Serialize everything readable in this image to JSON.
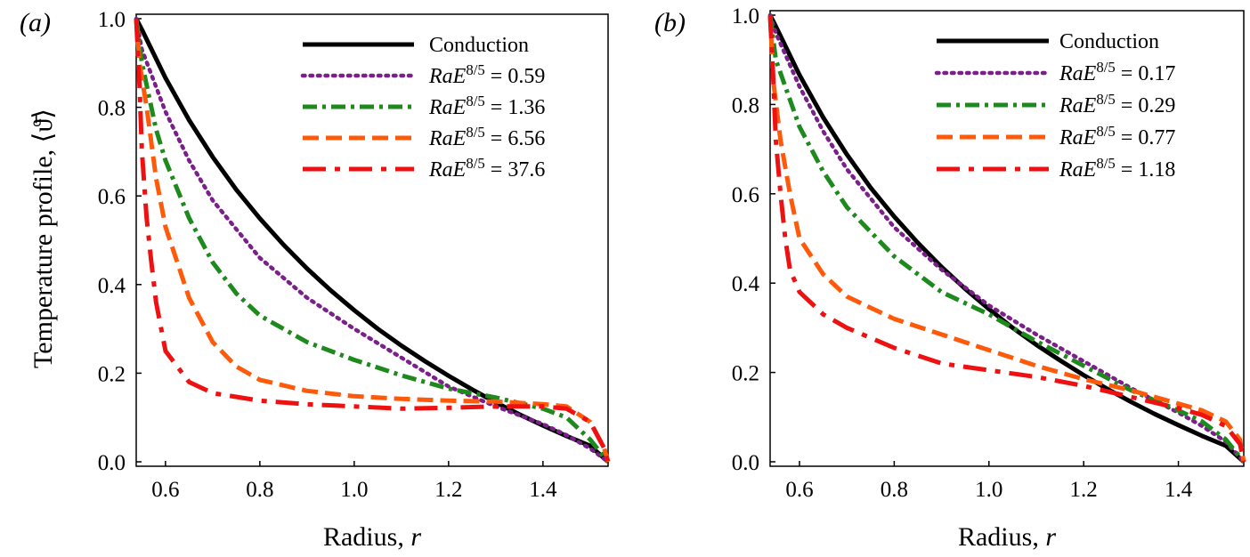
{
  "figure": {
    "ylabel": "Temperature profile, ⟨ϑ̄⟩",
    "xlabel_text": "Radius, ",
    "xlabel_var": "r"
  },
  "chart_data": [
    {
      "type": "line",
      "panel_label": "(a)",
      "xlabel": "Radius, r",
      "ylabel": "Temperature profile, ⟨ϑ̄⟩",
      "xlim": [
        0.538,
        1.538
      ],
      "ylim": [
        -0.01,
        1.01
      ],
      "xticks": [
        "0.6",
        "0.8",
        "1.0",
        "1.2",
        "1.4"
      ],
      "yticks": [
        "0.0",
        "0.2",
        "0.4",
        "0.6",
        "0.8",
        "1.0"
      ],
      "legend_position": "top-right",
      "series": [
        {
          "name": "Conduction",
          "name_html": "Conduction",
          "style": "solid",
          "color": "#000000",
          "x": [
            0.538,
            0.55,
            0.6,
            0.65,
            0.7,
            0.75,
            0.8,
            0.85,
            0.9,
            0.95,
            1.0,
            1.05,
            1.1,
            1.15,
            1.2,
            1.25,
            1.3,
            1.35,
            1.4,
            1.45,
            1.5,
            1.538
          ],
          "y": [
            1.0,
            0.975,
            0.866,
            0.771,
            0.688,
            0.614,
            0.549,
            0.49,
            0.436,
            0.387,
            0.342,
            0.3,
            0.262,
            0.227,
            0.194,
            0.163,
            0.134,
            0.107,
            0.082,
            0.058,
            0.036,
            0.0
          ]
        },
        {
          "name": "RaE^{8/5} = 0.59",
          "name_html": "<tspan font-style='italic'>RaE</tspan><tspan baseline-shift='super' font-size='70%'>8/5</tspan><tspan> = 0.59</tspan>",
          "style": "dotted",
          "color": "#7b1f8a",
          "x": [
            0.538,
            0.55,
            0.6,
            0.65,
            0.7,
            0.8,
            0.9,
            1.0,
            1.1,
            1.2,
            1.3,
            1.4,
            1.45,
            1.5,
            1.538
          ],
          "y": [
            1.0,
            0.93,
            0.79,
            0.68,
            0.59,
            0.46,
            0.37,
            0.3,
            0.235,
            0.17,
            0.125,
            0.085,
            0.06,
            0.03,
            0.0
          ]
        },
        {
          "name": "RaE^{8/5} = 1.36",
          "name_html": "<tspan font-style='italic'>RaE</tspan><tspan baseline-shift='super' font-size='70%'>8/5</tspan><tspan> = 1.36</tspan>",
          "style": "dashdot",
          "color": "#1e8a1e",
          "x": [
            0.538,
            0.55,
            0.58,
            0.6,
            0.65,
            0.7,
            0.75,
            0.8,
            0.9,
            1.0,
            1.1,
            1.2,
            1.3,
            1.4,
            1.45,
            1.5,
            1.538
          ],
          "y": [
            1.0,
            0.9,
            0.75,
            0.68,
            0.55,
            0.45,
            0.38,
            0.33,
            0.27,
            0.23,
            0.195,
            0.165,
            0.145,
            0.12,
            0.1,
            0.05,
            0.0
          ]
        },
        {
          "name": "RaE^{8/5} = 6.56",
          "name_html": "<tspan font-style='italic'>RaE</tspan><tspan baseline-shift='super' font-size='70%'>8/5</tspan><tspan> = 6.56</tspan>",
          "style": "dashed",
          "color": "#ff5a0a",
          "x": [
            0.538,
            0.545,
            0.56,
            0.58,
            0.6,
            0.65,
            0.7,
            0.75,
            0.8,
            0.9,
            1.0,
            1.1,
            1.2,
            1.3,
            1.4,
            1.45,
            1.5,
            1.53,
            1.538
          ],
          "y": [
            1.0,
            0.9,
            0.8,
            0.64,
            0.53,
            0.37,
            0.27,
            0.215,
            0.185,
            0.16,
            0.148,
            0.142,
            0.138,
            0.136,
            0.13,
            0.125,
            0.09,
            0.03,
            0.0
          ]
        },
        {
          "name": "RaE^{8/5} = 37.6",
          "name_html": "<tspan font-style='italic'>RaE</tspan><tspan baseline-shift='super' font-size='70%'>8/5</tspan><tspan> = 37.6</tspan>",
          "style": "longdashdot",
          "color": "#ee1111",
          "x": [
            0.538,
            0.545,
            0.55,
            0.56,
            0.57,
            0.58,
            0.6,
            0.65,
            0.7,
            0.8,
            0.9,
            1.0,
            1.1,
            1.2,
            1.3,
            1.4,
            1.45,
            1.5,
            1.53,
            1.538
          ],
          "y": [
            1.0,
            0.85,
            0.7,
            0.55,
            0.45,
            0.36,
            0.25,
            0.18,
            0.155,
            0.138,
            0.13,
            0.125,
            0.12,
            0.122,
            0.125,
            0.125,
            0.12,
            0.09,
            0.03,
            0.0
          ]
        }
      ]
    },
    {
      "type": "line",
      "panel_label": "(b)",
      "xlabel": "Radius, r",
      "ylabel": "",
      "xlim": [
        0.538,
        1.538
      ],
      "ylim": [
        -0.01,
        1.01
      ],
      "xticks": [
        "0.6",
        "0.8",
        "1.0",
        "1.2",
        "1.4"
      ],
      "yticks": [
        "0.0",
        "0.2",
        "0.4",
        "0.6",
        "0.8",
        "1.0"
      ],
      "legend_position": "top-right",
      "series": [
        {
          "name": "Conduction",
          "name_html": "Conduction",
          "style": "solid",
          "color": "#000000",
          "x": [
            0.538,
            0.55,
            0.6,
            0.65,
            0.7,
            0.75,
            0.8,
            0.85,
            0.9,
            0.95,
            1.0,
            1.05,
            1.1,
            1.15,
            1.2,
            1.25,
            1.3,
            1.35,
            1.4,
            1.45,
            1.5,
            1.538
          ],
          "y": [
            1.0,
            0.975,
            0.866,
            0.771,
            0.688,
            0.614,
            0.549,
            0.49,
            0.436,
            0.387,
            0.342,
            0.3,
            0.262,
            0.227,
            0.194,
            0.163,
            0.134,
            0.107,
            0.082,
            0.058,
            0.036,
            0.0
          ]
        },
        {
          "name": "RaE^{8/5} = 0.17",
          "name_html": "<tspan font-style='italic'>RaE</tspan><tspan baseline-shift='super' font-size='70%'>8/5</tspan><tspan> = 0.17</tspan>",
          "style": "dotted",
          "color": "#7b1f8a",
          "x": [
            0.538,
            0.55,
            0.6,
            0.65,
            0.7,
            0.8,
            0.9,
            1.0,
            1.1,
            1.2,
            1.3,
            1.4,
            1.45,
            1.5,
            1.538
          ],
          "y": [
            1.0,
            0.96,
            0.84,
            0.74,
            0.655,
            0.525,
            0.43,
            0.35,
            0.285,
            0.225,
            0.165,
            0.11,
            0.08,
            0.045,
            0.0
          ]
        },
        {
          "name": "RaE^{8/5} = 0.29",
          "name_html": "<tspan font-style='italic'>RaE</tspan><tspan baseline-shift='super' font-size='70%'>8/5</tspan><tspan> = 0.29</tspan>",
          "style": "dashdot",
          "color": "#1e8a1e",
          "x": [
            0.538,
            0.55,
            0.6,
            0.65,
            0.7,
            0.8,
            0.9,
            1.0,
            1.1,
            1.2,
            1.3,
            1.4,
            1.45,
            1.5,
            1.538
          ],
          "y": [
            1.0,
            0.9,
            0.75,
            0.65,
            0.57,
            0.46,
            0.38,
            0.33,
            0.27,
            0.215,
            0.16,
            0.115,
            0.09,
            0.05,
            0.0
          ]
        },
        {
          "name": "RaE^{8/5} = 0.77",
          "name_html": "<tspan font-style='italic'>RaE</tspan><tspan baseline-shift='super' font-size='70%'>8/5</tspan><tspan> = 0.77</tspan>",
          "style": "dashed",
          "color": "#ff5a0a",
          "x": [
            0.538,
            0.545,
            0.56,
            0.58,
            0.6,
            0.65,
            0.7,
            0.8,
            0.9,
            1.0,
            1.1,
            1.2,
            1.3,
            1.4,
            1.45,
            1.5,
            1.53,
            1.538
          ],
          "y": [
            1.0,
            0.85,
            0.72,
            0.6,
            0.5,
            0.42,
            0.37,
            0.32,
            0.285,
            0.25,
            0.215,
            0.185,
            0.16,
            0.13,
            0.115,
            0.09,
            0.05,
            0.0
          ]
        },
        {
          "name": "RaE^{8/5} = 1.18",
          "name_html": "<tspan font-style='italic'>RaE</tspan><tspan baseline-shift='super' font-size='70%'>8/5</tspan><tspan> = 1.18</tspan>",
          "style": "longdashdot",
          "color": "#ee1111",
          "x": [
            0.538,
            0.545,
            0.55,
            0.56,
            0.57,
            0.58,
            0.6,
            0.65,
            0.7,
            0.8,
            0.9,
            1.0,
            1.1,
            1.2,
            1.3,
            1.4,
            1.45,
            1.5,
            1.53,
            1.538
          ],
          "y": [
            1.0,
            0.85,
            0.72,
            0.6,
            0.5,
            0.43,
            0.38,
            0.33,
            0.3,
            0.255,
            0.22,
            0.205,
            0.19,
            0.17,
            0.145,
            0.12,
            0.105,
            0.08,
            0.04,
            0.0
          ]
        }
      ]
    }
  ]
}
